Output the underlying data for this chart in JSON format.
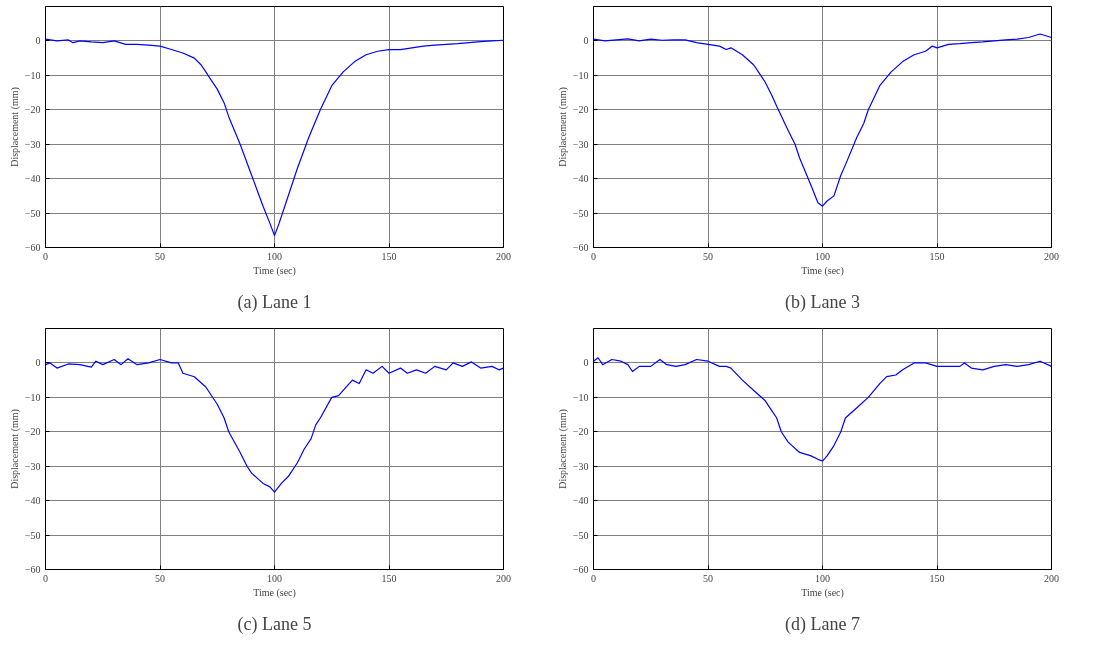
{
  "chart_data": [
    {
      "type": "line",
      "title": "(a) Lane 1",
      "xlabel": "Time (sec)",
      "ylabel": "Displacement (mm)",
      "xlim": [
        0,
        200
      ],
      "ylim": [
        -60,
        10
      ],
      "xticks": [
        0,
        50,
        100,
        150,
        200
      ],
      "yticks": [
        -60,
        -50,
        -40,
        -30,
        -20,
        -10,
        0
      ],
      "grid": true,
      "x": [
        0,
        5,
        10,
        12,
        15,
        20,
        25,
        30,
        35,
        40,
        45,
        50,
        55,
        60,
        65,
        68,
        70,
        72,
        75,
        78,
        80,
        85,
        90,
        95,
        98,
        100,
        102,
        105,
        110,
        115,
        120,
        125,
        130,
        135,
        140,
        145,
        150,
        155,
        160,
        165,
        170,
        175,
        180,
        185,
        190,
        195,
        200
      ],
      "series": [
        {
          "color": "#0000ff",
          "values": [
            0.5,
            0,
            0.3,
            -0.5,
            0,
            -0.3,
            -0.5,
            0,
            -1,
            -1,
            -1.2,
            -1.5,
            -2.5,
            -3.5,
            -5,
            -7,
            -9,
            -11,
            -14,
            -18,
            -22,
            -30,
            -39,
            -48,
            -53,
            -56.5,
            -53,
            -47,
            -37,
            -28,
            -20,
            -13,
            -9,
            -6,
            -4,
            -3,
            -2.5,
            -2.5,
            -2,
            -1.5,
            -1.2,
            -1,
            -0.8,
            -0.5,
            -0.2,
            0,
            0.2
          ]
        }
      ]
    },
    {
      "type": "line",
      "title": "(b) Lane 3",
      "xlabel": "Time (sec)",
      "ylabel": "Displacement (mm)",
      "xlim": [
        0,
        200
      ],
      "ylim": [
        -60,
        10
      ],
      "xticks": [
        0,
        50,
        100,
        150,
        200
      ],
      "yticks": [
        -60,
        -50,
        -40,
        -30,
        -20,
        -10,
        0
      ],
      "grid": true,
      "x": [
        0,
        5,
        10,
        15,
        20,
        25,
        30,
        35,
        40,
        45,
        50,
        55,
        58,
        60,
        65,
        70,
        72,
        75,
        78,
        80,
        85,
        88,
        90,
        95,
        98,
        100,
        102,
        105,
        108,
        110,
        115,
        118,
        120,
        125,
        130,
        135,
        140,
        145,
        148,
        150,
        155,
        160,
        165,
        170,
        175,
        180,
        185,
        190,
        195,
        200
      ],
      "series": [
        {
          "color": "#0000ff",
          "values": [
            0.5,
            0,
            0.3,
            0.6,
            0,
            0.5,
            0.2,
            0.3,
            0.3,
            -0.5,
            -1,
            -1.5,
            -2.5,
            -2,
            -4,
            -7,
            -9,
            -12,
            -16,
            -19,
            -26,
            -30,
            -34,
            -42,
            -47,
            -48,
            -46.5,
            -45,
            -39,
            -36,
            -28,
            -24,
            -20,
            -13,
            -9,
            -6,
            -4,
            -3,
            -1.5,
            -2,
            -1,
            -0.8,
            -0.5,
            -0.3,
            0,
            0.3,
            0.5,
            1,
            2,
            1
          ]
        }
      ]
    },
    {
      "type": "line",
      "title": "(c) Lane 5",
      "xlabel": "Time (sec)",
      "ylabel": "Displacement (mm)",
      "xlim": [
        0,
        200
      ],
      "ylim": [
        -60,
        10
      ],
      "xticks": [
        0,
        50,
        100,
        150,
        200
      ],
      "yticks": [
        -60,
        -50,
        -40,
        -30,
        -20,
        -10,
        0
      ],
      "grid": true,
      "x": [
        0,
        2,
        5,
        10,
        15,
        20,
        22,
        25,
        30,
        33,
        36,
        40,
        45,
        50,
        55,
        58,
        60,
        65,
        70,
        75,
        78,
        80,
        85,
        88,
        90,
        95,
        98,
        100,
        103,
        106,
        110,
        113,
        116,
        118,
        120,
        125,
        128,
        130,
        134,
        137,
        140,
        143,
        147,
        150,
        155,
        158,
        162,
        166,
        170,
        175,
        178,
        182,
        186,
        190,
        195,
        198,
        200
      ],
      "series": [
        {
          "color": "#0000ff",
          "values": [
            -0.5,
            0,
            -1.5,
            -0.3,
            -0.5,
            -1.2,
            0.5,
            -0.5,
            1,
            -0.5,
            1.2,
            -0.5,
            0,
            1,
            0,
            0,
            -3,
            -4,
            -7,
            -12,
            -16,
            -20,
            -26,
            -30,
            -32,
            -35,
            -36,
            -37.5,
            -35,
            -33,
            -29,
            -25,
            -22,
            -18,
            -16,
            -10,
            -9.5,
            -8,
            -5,
            -6,
            -2,
            -3,
            -1,
            -3,
            -1.5,
            -3,
            -2,
            -3,
            -1,
            -2,
            0,
            -1,
            0.3,
            -1.5,
            -1,
            -2,
            -1.5
          ]
        }
      ]
    },
    {
      "type": "line",
      "title": "(d) Lane 7",
      "xlabel": "Time (sec)",
      "ylabel": "Displacement (mm)",
      "xlim": [
        0,
        200
      ],
      "ylim": [
        -60,
        10
      ],
      "xticks": [
        0,
        50,
        100,
        150,
        200
      ],
      "yticks": [
        -60,
        -50,
        -40,
        -30,
        -20,
        -10,
        0
      ],
      "grid": true,
      "x": [
        0,
        2,
        4,
        8,
        12,
        15,
        17,
        20,
        25,
        29,
        32,
        36,
        40,
        45,
        50,
        55,
        58,
        60,
        65,
        70,
        75,
        78,
        80,
        82,
        85,
        90,
        95,
        98,
        100,
        102,
        105,
        108,
        110,
        115,
        120,
        125,
        128,
        132,
        135,
        140,
        145,
        150,
        155,
        160,
        162,
        165,
        170,
        175,
        180,
        185,
        190,
        195,
        200
      ],
      "series": [
        {
          "color": "#0000ff",
          "values": [
            0.5,
            1.5,
            -0.5,
            1,
            0.5,
            -0.5,
            -2.5,
            -1,
            -1,
            1,
            -0.5,
            -1,
            -0.5,
            1,
            0.5,
            -1,
            -1,
            -1.5,
            -5,
            -8,
            -11,
            -14,
            -16,
            -20,
            -23,
            -26,
            -27,
            -28,
            -28.5,
            -27,
            -24,
            -20,
            -16,
            -13,
            -10,
            -6,
            -4,
            -3.5,
            -2,
            0,
            0,
            -1,
            -1,
            -1,
            0,
            -1.5,
            -2,
            -1,
            -0.5,
            -1,
            -0.5,
            0.5,
            -1
          ]
        }
      ]
    }
  ]
}
